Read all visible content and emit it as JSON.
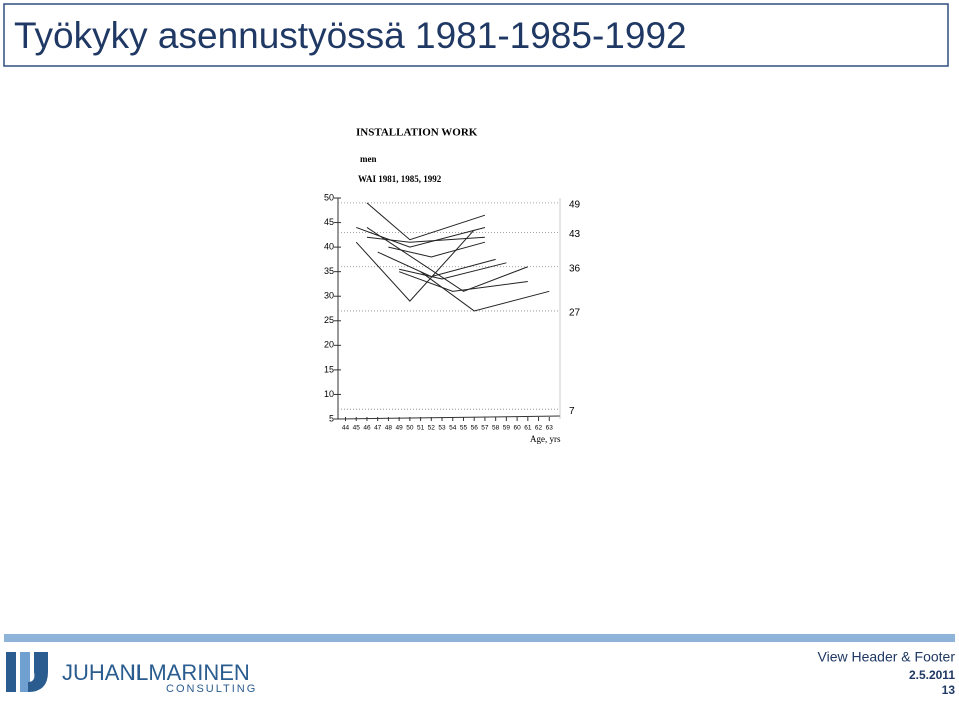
{
  "title": "Työkyky asennustyössä 1981-1985-1992",
  "chart_data": {
    "type": "line",
    "title": "INSTALLATION WORK",
    "subtitle": "men",
    "annotation": "WAI 1981, 1985, 1992",
    "x_label": "Age, yrs",
    "xlim": [
      43.3,
      64
    ],
    "xticks": [
      44,
      45,
      46,
      47,
      48,
      49,
      50,
      51,
      52,
      53,
      54,
      55,
      56,
      57,
      58,
      59,
      60,
      61,
      62,
      63
    ],
    "ylim": [
      5,
      50
    ],
    "yticks": [
      5,
      10,
      15,
      20,
      25,
      30,
      35,
      40,
      45,
      50
    ],
    "reference_lines": [
      49,
      43,
      36,
      27,
      7
    ],
    "series": [
      {
        "color": "#222222",
        "x": [
          46,
          50,
          57
        ],
        "values": [
          49,
          41.5,
          46.5
        ]
      },
      {
        "color": "#222222",
        "x": [
          45,
          50,
          57
        ],
        "values": [
          44,
          40,
          44
        ]
      },
      {
        "color": "#222222",
        "x": [
          46,
          50,
          57
        ],
        "values": [
          42,
          41,
          42
        ]
      },
      {
        "color": "#222222",
        "x": [
          45,
          50,
          56
        ],
        "values": [
          41,
          29,
          43.5
        ]
      },
      {
        "color": "#222222",
        "x": [
          46,
          55,
          61
        ],
        "values": [
          44,
          31,
          36
        ]
      },
      {
        "color": "#222222",
        "x": [
          47,
          52,
          58
        ],
        "values": [
          39,
          34,
          37.5
        ]
      },
      {
        "color": "#222222",
        "x": [
          49,
          54,
          61
        ],
        "values": [
          35,
          31,
          33
        ]
      },
      {
        "color": "#222222",
        "x": [
          51,
          56,
          63
        ],
        "values": [
          35,
          27,
          31
        ]
      },
      {
        "color": "#222222",
        "x": [
          49,
          53,
          59
        ],
        "values": [
          35.5,
          33.5,
          36.8
        ]
      },
      {
        "color": "#222222",
        "x": [
          48,
          52,
          57
        ],
        "values": [
          40,
          38,
          41
        ]
      }
    ]
  },
  "footer": {
    "text": "View Header & Footer",
    "date": "2.5.2011",
    "page": "13"
  },
  "logo": {
    "first": "JUHANI",
    "last": "ILMARINEN",
    "sub": "CONSULTING"
  }
}
